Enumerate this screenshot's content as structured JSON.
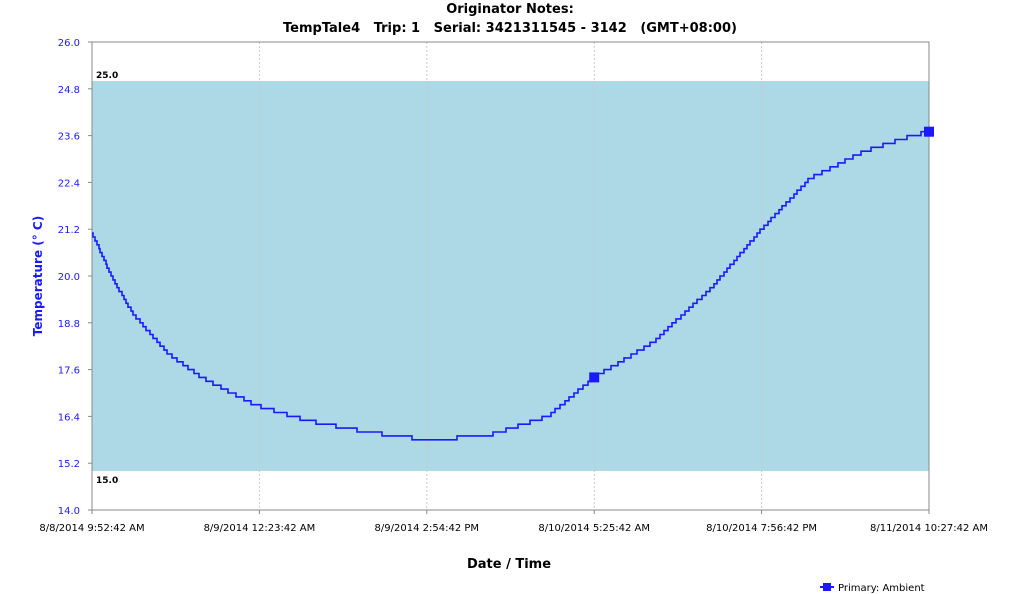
{
  "chart_data": {
    "type": "line",
    "title": "Originator Notes:",
    "subtitle": "TempTale4   Trip: 1   Serial: 3421311545 - 3142   (GMT+08:00)",
    "xlabel": "Date / Time",
    "ylabel": "Temperature (° C)",
    "ylim": [
      14.0,
      26.0
    ],
    "yticks": [
      "14.0",
      "15.2",
      "16.4",
      "17.6",
      "18.8",
      "20.0",
      "21.2",
      "22.4",
      "23.6",
      "24.8",
      "26.0"
    ],
    "xticks": [
      "8/8/2014 9:52:42 AM",
      "8/9/2014 12:23:42 AM",
      "8/9/2014 2:54:42 PM",
      "8/10/2014 5:25:42 AM",
      "8/10/2014 7:56:42 PM",
      "8/11/2014 10:27:42 AM"
    ],
    "xlim": [
      "8/8/2014 9:52:42 AM",
      "8/11/2014 10:27:42 AM"
    ],
    "grid": true,
    "legend_position": "bottom-right",
    "acceptable_range": {
      "upper": 25.0,
      "lower": 15.0,
      "upper_label": "25.0",
      "lower_label": "15.0",
      "color": "#add8e6"
    },
    "series": [
      {
        "name": "Primary: Ambient",
        "color": "#1a1aff",
        "step": 0.1,
        "x": [
          "8/8/2014 9:52:42 AM",
          "8/8/2014 11:05:12 AM",
          "8/8/2014 12:17:42 PM",
          "8/8/2014 1:30:12 PM",
          "8/8/2014 2:42:42 PM",
          "8/8/2014 4:31:27 PM",
          "8/8/2014 7:21:27 PM",
          "8/8/2014 11:58:42 PM",
          "8/9/2014 4:23:12 AM",
          "8/9/2014 9:40:57 AM",
          "8/9/2014 2:54:42 PM",
          "8/9/2014 8:06:42 PM",
          "8/10/2014 1:24:12 AM",
          "8/10/2014 5:25:42 AM",
          "8/10/2014 10:31:12 AM",
          "8/10/2014 3:36:42 PM",
          "8/10/2014 7:56:42 PM",
          "8/11/2014 12:07:12 AM",
          "8/11/2014 4:51:57 AM",
          "8/11/2014 9:02:27 AM",
          "8/11/2014 10:27:42 AM"
        ],
        "y": [
          21.1,
          20.3,
          19.6,
          19.0,
          18.6,
          18.0,
          17.4,
          16.7,
          16.3,
          16.0,
          15.8,
          15.9,
          16.4,
          17.4,
          18.3,
          19.7,
          21.2,
          22.5,
          23.2,
          23.6,
          23.7
        ]
      }
    ],
    "markers": [
      {
        "x": "8/10/2014 5:25:42 AM",
        "y": 17.4
      },
      {
        "x": "8/11/2014 10:27:42 AM",
        "y": 23.7
      }
    ]
  }
}
